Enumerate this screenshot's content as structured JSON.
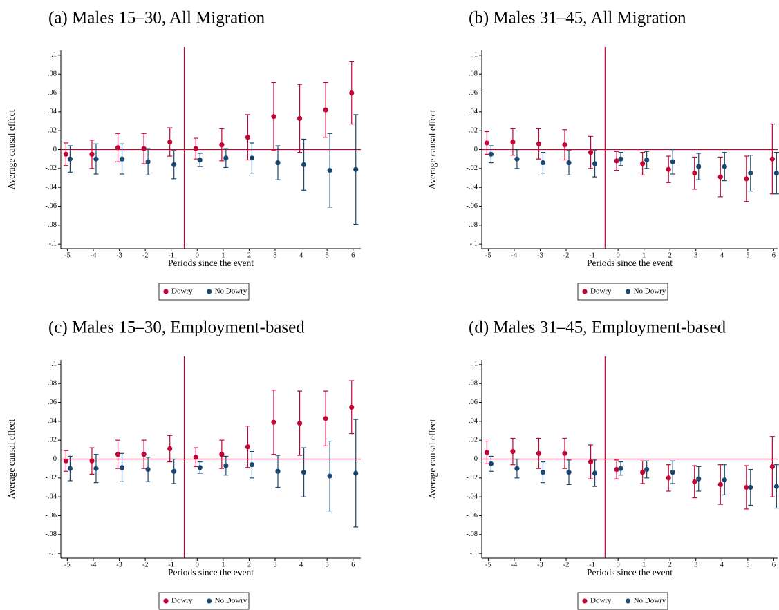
{
  "chart_data": [
    {
      "type": "scatter",
      "title": "(a) Males 15–30, All Migration",
      "xlabel": "Periods since the event",
      "ylabel": "Average causal effect",
      "x": [
        -5,
        -4,
        -3,
        -2,
        -1,
        0,
        1,
        2,
        3,
        4,
        5,
        6
      ],
      "series": [
        {
          "name": "Dowry",
          "color": "#c10534",
          "values": [
            -0.005,
            -0.005,
            0.002,
            0.001,
            0.008,
            0.001,
            0.005,
            0.013,
            0.035,
            0.033,
            0.042,
            0.06
          ],
          "errors": [
            0.012,
            0.015,
            0.015,
            0.016,
            0.015,
            0.011,
            0.017,
            0.024,
            0.036,
            0.036,
            0.029,
            0.033
          ]
        },
        {
          "name": "No Dowry",
          "color": "#1a476f",
          "values": [
            -0.01,
            -0.01,
            -0.01,
            -0.013,
            -0.016,
            -0.011,
            -0.009,
            -0.009,
            -0.014,
            -0.016,
            -0.022,
            -0.021
          ],
          "errors": [
            0.014,
            0.016,
            0.016,
            0.014,
            0.015,
            0.007,
            0.01,
            0.016,
            0.018,
            0.027,
            0.039,
            0.058
          ]
        }
      ],
      "xlim": [
        -5.25,
        6.3
      ],
      "ylim": [
        -0.105,
        0.105
      ],
      "xticks": [
        -5,
        -4,
        -3,
        -2,
        -1,
        0,
        1,
        2,
        3,
        4,
        5,
        6
      ],
      "yticks": [
        {
          "value": -0.1,
          "label": "-.1"
        },
        {
          "value": -0.08,
          "label": "-.08"
        },
        {
          "value": -0.06,
          "label": "-.06"
        },
        {
          "value": -0.04,
          "label": "-.04"
        },
        {
          "value": -0.02,
          "label": "-.02"
        },
        0,
        {
          "value": 0.02,
          "label": ".02"
        },
        {
          "value": 0.04,
          "label": ".04"
        },
        {
          "value": 0.06,
          "label": ".06"
        },
        {
          "value": 0.08,
          "label": ".08"
        },
        {
          "value": 0.1,
          "label": ".1"
        }
      ],
      "vline": -0.5,
      "hline": 0,
      "ref_line_color": "#c10534",
      "legend": "bottom"
    },
    {
      "type": "scatter",
      "title": "(b) Males 31–45, All Migration",
      "xlabel": "Periods since the event",
      "ylabel": "Average causal effect",
      "x": [
        -5,
        -4,
        -3,
        -2,
        -1,
        0,
        1,
        2,
        3,
        4,
        5,
        6
      ],
      "series": [
        {
          "name": "Dowry",
          "color": "#c10534",
          "values": [
            0.007,
            0.008,
            0.006,
            0.005,
            -0.003,
            -0.012,
            -0.015,
            -0.021,
            -0.025,
            -0.029,
            -0.031,
            -0.01
          ],
          "errors": [
            0.012,
            0.014,
            0.016,
            0.016,
            0.017,
            0.01,
            0.012,
            0.014,
            0.017,
            0.021,
            0.024,
            0.037
          ]
        },
        {
          "name": "No Dowry",
          "color": "#1a476f",
          "values": [
            -0.005,
            -0.01,
            -0.014,
            -0.014,
            -0.015,
            -0.01,
            -0.011,
            -0.013,
            -0.018,
            -0.018,
            -0.025,
            -0.025
          ],
          "errors": [
            0.009,
            0.01,
            0.011,
            0.013,
            0.014,
            0.007,
            0.009,
            0.013,
            0.014,
            0.015,
            0.019,
            0.022
          ]
        }
      ],
      "xlim": [
        -5.25,
        6.15
      ],
      "ylim": [
        -0.105,
        0.105
      ],
      "xticks": [
        -5,
        -4,
        -3,
        -2,
        -1,
        0,
        1,
        2,
        3,
        4,
        5,
        6
      ],
      "yticks": [
        {
          "value": -0.1,
          "label": "-.1"
        },
        {
          "value": -0.08,
          "label": "-.08"
        },
        {
          "value": -0.06,
          "label": "-.06"
        },
        {
          "value": -0.04,
          "label": "-.04"
        },
        {
          "value": -0.02,
          "label": "-.02"
        },
        0,
        {
          "value": 0.02,
          "label": ".02"
        },
        {
          "value": 0.04,
          "label": ".04"
        },
        {
          "value": 0.06,
          "label": ".06"
        },
        {
          "value": 0.08,
          "label": ".08"
        },
        {
          "value": 0.1,
          "label": ".1"
        }
      ],
      "vline": -0.5,
      "hline": 0,
      "ref_line_color": "#c10534",
      "legend": "bottom"
    },
    {
      "type": "scatter",
      "title": "(c) Males 15–30, Employment-based",
      "xlabel": "Periods since the event",
      "ylabel": "Average causal effect",
      "x": [
        -5,
        -4,
        -3,
        -2,
        -1,
        0,
        1,
        2,
        3,
        4,
        5,
        6
      ],
      "series": [
        {
          "name": "Dowry",
          "color": "#c10534",
          "values": [
            -0.002,
            -0.002,
            0.005,
            0.005,
            0.011,
            0.002,
            0.005,
            0.013,
            0.039,
            0.038,
            0.043,
            0.055
          ],
          "errors": [
            0.011,
            0.014,
            0.015,
            0.015,
            0.014,
            0.01,
            0.015,
            0.022,
            0.034,
            0.034,
            0.029,
            0.028
          ]
        },
        {
          "name": "No Dowry",
          "color": "#1a476f",
          "values": [
            -0.01,
            -0.01,
            -0.009,
            -0.011,
            -0.013,
            -0.009,
            -0.007,
            -0.006,
            -0.013,
            -0.014,
            -0.018,
            -0.015
          ],
          "errors": [
            0.013,
            0.015,
            0.015,
            0.013,
            0.013,
            0.006,
            0.01,
            0.014,
            0.017,
            0.026,
            0.037,
            0.057
          ]
        }
      ],
      "xlim": [
        -5.25,
        6.3
      ],
      "ylim": [
        -0.105,
        0.105
      ],
      "xticks": [
        -5,
        -4,
        -3,
        -2,
        -1,
        0,
        1,
        2,
        3,
        4,
        5,
        6
      ],
      "yticks": [
        {
          "value": -0.1,
          "label": "-.1"
        },
        {
          "value": -0.08,
          "label": "-.08"
        },
        {
          "value": -0.06,
          "label": "-.06"
        },
        {
          "value": -0.04,
          "label": "-.04"
        },
        {
          "value": -0.02,
          "label": "-.02"
        },
        0,
        {
          "value": 0.02,
          "label": ".02"
        },
        {
          "value": 0.04,
          "label": ".04"
        },
        {
          "value": 0.06,
          "label": ".06"
        },
        {
          "value": 0.08,
          "label": ".08"
        },
        {
          "value": 0.1,
          "label": ".1"
        }
      ],
      "vline": -0.5,
      "hline": 0,
      "ref_line_color": "#c10534",
      "legend": "bottom"
    },
    {
      "type": "scatter",
      "title": "(d) Males 31–45, Employment-based",
      "xlabel": "Periods since the event",
      "ylabel": "Average causal effect",
      "x": [
        -5,
        -4,
        -3,
        -2,
        -1,
        0,
        1,
        2,
        3,
        4,
        5,
        6
      ],
      "series": [
        {
          "name": "Dowry",
          "color": "#c10534",
          "values": [
            0.007,
            0.008,
            0.006,
            0.006,
            -0.003,
            -0.011,
            -0.014,
            -0.02,
            -0.024,
            -0.027,
            -0.03,
            -0.008
          ],
          "errors": [
            0.012,
            0.014,
            0.016,
            0.016,
            0.018,
            0.01,
            0.012,
            0.014,
            0.017,
            0.021,
            0.023,
            0.032
          ]
        },
        {
          "name": "No Dowry",
          "color": "#1a476f",
          "values": [
            -0.005,
            -0.01,
            -0.014,
            -0.014,
            -0.015,
            -0.01,
            -0.011,
            -0.014,
            -0.021,
            -0.022,
            -0.03,
            -0.029
          ],
          "errors": [
            0.008,
            0.01,
            0.011,
            0.013,
            0.014,
            0.007,
            0.009,
            0.012,
            0.013,
            0.016,
            0.019,
            0.023
          ]
        }
      ],
      "xlim": [
        -5.25,
        6.15
      ],
      "ylim": [
        -0.105,
        0.105
      ],
      "xticks": [
        -5,
        -4,
        -3,
        -2,
        -1,
        0,
        1,
        2,
        3,
        4,
        5,
        6
      ],
      "yticks": [
        {
          "value": -0.1,
          "label": "-.1"
        },
        {
          "value": -0.08,
          "label": "-.08"
        },
        {
          "value": -0.06,
          "label": "-.06"
        },
        {
          "value": -0.04,
          "label": "-.04"
        },
        {
          "value": -0.02,
          "label": "-.02"
        },
        0,
        {
          "value": 0.02,
          "label": ".02"
        },
        {
          "value": 0.04,
          "label": ".04"
        },
        {
          "value": 0.06,
          "label": ".06"
        },
        {
          "value": 0.08,
          "label": ".08"
        },
        {
          "value": 0.1,
          "label": ".1"
        }
      ],
      "vline": -0.5,
      "hline": 0,
      "ref_line_color": "#c10534",
      "legend": "bottom"
    }
  ]
}
